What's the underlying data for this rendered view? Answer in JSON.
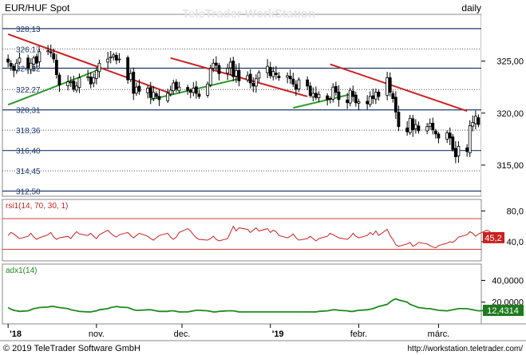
{
  "header": {
    "title": "EUR/HUF Spot",
    "watermark": "TeleTrader WorkStation",
    "period": "daily"
  },
  "footer": {
    "copyright": "© 2019 TeleTrader Software GmbH",
    "url": "http://workstation.teletrader.com/"
  },
  "colors": {
    "trend_red": "#cc2222",
    "trend_green": "#2a9a2a",
    "level_line": "#1f3a6b",
    "rsi_line": "#cc2222",
    "adx_line": "#1e8a1e",
    "candle": "#000000"
  },
  "chart_data": [
    {
      "type": "candlestick",
      "title": "EUR/HUF Spot",
      "y_axis_labels": [
        "325,00",
        "320,00",
        "315,00"
      ],
      "ylim": [
        312.0,
        329.5
      ],
      "x_tick_labels": [
        "'18",
        "nov.",
        "dec.",
        "'19",
        "febr.",
        "márc."
      ],
      "levels": [
        {
          "value": 328.13,
          "label": "328,13",
          "style": "solid"
        },
        {
          "value": 326.17,
          "label": "326,17",
          "style": "dotted"
        },
        {
          "value": 324.32,
          "label": "324,32",
          "style": "solid"
        },
        {
          "value": 322.27,
          "label": "322,27",
          "style": "dotted"
        },
        {
          "value": 320.31,
          "label": "320,31",
          "style": "solid"
        },
        {
          "value": 318.36,
          "label": "318,36",
          "style": "dotted"
        },
        {
          "value": 316.4,
          "label": "316,40",
          "style": "solid"
        },
        {
          "value": 314.45,
          "label": "314,45",
          "style": "dotted"
        },
        {
          "value": 312.5,
          "label": "312,50",
          "style": "solid"
        }
      ],
      "close_series": [
        324.9,
        324.5,
        324.1,
        324.8,
        325.3,
        324.3,
        324.8,
        325.3,
        324.8,
        325.9,
        326.0,
        325.8,
        325.2,
        323.7,
        322.7,
        323.0,
        323.0,
        322.3,
        322.6,
        323.4,
        323.5,
        322.8,
        323.4,
        324.1,
        324.8,
        325.2,
        325.4,
        325.6,
        325.1,
        325.2,
        323.2,
        323.8,
        321.9,
        322.5,
        322.1,
        322.4,
        321.5,
        322.0,
        321.6,
        321.3,
        321.9,
        322.2,
        322.9,
        322.3,
        322.5,
        322.2,
        322.0,
        322.4,
        321.9,
        321.6,
        322.8,
        324.3,
        324.8,
        324.6,
        323.8,
        324.3,
        324.9,
        323.5,
        324.1,
        323.1,
        323.6,
        322.9,
        322.6,
        323.3,
        323.9,
        324.5,
        323.6,
        324.0,
        323.7,
        323.4,
        323.6,
        323.3,
        322.8,
        322.3,
        323.2,
        322.6,
        321.7,
        321.9,
        321.5,
        321.8,
        321.3,
        321.4,
        322.5,
        322.0,
        321.3,
        321.0,
        322.2,
        321.6,
        321.0,
        321.1,
        320.9,
        321.6,
        321.4,
        322.0,
        321.6,
        323.4,
        322.0,
        321.4,
        320.1,
        318.7,
        318.2,
        319.5,
        318.4,
        318.9,
        318.3,
        318.7,
        319.0,
        318.4,
        318.0,
        317.6,
        318.1,
        317.6,
        316.5,
        315.8,
        316.8,
        316.3,
        318.8,
        319.1,
        319.7,
        318.9,
        320.1,
        320.0,
        318.8
      ],
      "trendlines": [
        {
          "color": "red",
          "from": [
            "2018-10-01",
            327.6
          ],
          "to": [
            "2018-11-27",
            321.9
          ]
        },
        {
          "color": "red",
          "from": [
            "2018-11-27",
            325.3
          ],
          "to": [
            "2019-01-14",
            321.6
          ]
        },
        {
          "color": "red",
          "from": [
            "2019-01-22",
            324.7
          ],
          "to": [
            "2019-03-11",
            320.2
          ]
        },
        {
          "color": "green",
          "from": [
            "2018-10-01",
            320.8
          ],
          "to": [
            "2018-11-03",
            324.3
          ]
        },
        {
          "color": "green",
          "from": [
            "2018-11-20",
            321.3
          ],
          "to": [
            "2018-12-21",
            323.3
          ]
        },
        {
          "color": "green",
          "from": [
            "2019-01-09",
            320.5
          ],
          "to": [
            "2019-01-29",
            321.8
          ]
        }
      ]
    },
    {
      "type": "line",
      "title": "rsi1(14, 70, 30, 1)",
      "y_axis_labels": [
        "80,0",
        "40,0"
      ],
      "ylim": [
        15,
        95
      ],
      "overbought": 70,
      "oversold": 30,
      "last_value": "45,2",
      "values": [
        48,
        52,
        50,
        47,
        44,
        47,
        51,
        46,
        43,
        45,
        49,
        52,
        46,
        43,
        45,
        47,
        44,
        49,
        53,
        50,
        48,
        51,
        47,
        44,
        49,
        55,
        51,
        48,
        46,
        49,
        52,
        48,
        45,
        48,
        51,
        47,
        44,
        42,
        45,
        48,
        51,
        46,
        43,
        46,
        52,
        57,
        54,
        49,
        45,
        43,
        42,
        44,
        47,
        43,
        41,
        44,
        52,
        60,
        54,
        58,
        56,
        52,
        55,
        58,
        54,
        57,
        52,
        55,
        53,
        48,
        45,
        47,
        50,
        45,
        42,
        44,
        47,
        44,
        41,
        44,
        47,
        51,
        49,
        47,
        45,
        43,
        46,
        51,
        47,
        45,
        48,
        52,
        49,
        54,
        48,
        56,
        48,
        43,
        36,
        34,
        37,
        39,
        34,
        36,
        39,
        37,
        35,
        33,
        32,
        35,
        38,
        40,
        39,
        42,
        46,
        49,
        53,
        51,
        47,
        50,
        55,
        53,
        45
      ]
    },
    {
      "type": "line",
      "title": "adx1(14)",
      "y_axis_labels": [
        "40,0000",
        "20,0000"
      ],
      "ylim": [
        0,
        55
      ],
      "last_value": "12,4314",
      "values": [
        15,
        13.5,
        12.5,
        12,
        11.5,
        12,
        13,
        14,
        14.5,
        15,
        15.5,
        16,
        16,
        15.5,
        15,
        14,
        13,
        12.5,
        12,
        11.5,
        11,
        11,
        11.5,
        12,
        13,
        14,
        15,
        15.5,
        16,
        15.5,
        15,
        14,
        13,
        12.5,
        12.5,
        13,
        13,
        12.5,
        12,
        11.5,
        11.5,
        12,
        12,
        11.5,
        11,
        11,
        11.5,
        12,
        12.5,
        12.5,
        12,
        11.5,
        11,
        11,
        11.5,
        12,
        12,
        12,
        11.5,
        11,
        11,
        11,
        11,
        11,
        11,
        11,
        11,
        11,
        11,
        11,
        11,
        11,
        11,
        11,
        11,
        11,
        11,
        11,
        11,
        11.5,
        12,
        12.5,
        13,
        13,
        12.5,
        12,
        11.5,
        11.5,
        12,
        12.5,
        13,
        13.5,
        14,
        15,
        16,
        18,
        20,
        22,
        23,
        22,
        20,
        18,
        17,
        16,
        15,
        14,
        14,
        13.5,
        13,
        12.5,
        12,
        12.5,
        13,
        13.5,
        14,
        14,
        13.5,
        13,
        12.5,
        12,
        12.4
      ]
    }
  ]
}
